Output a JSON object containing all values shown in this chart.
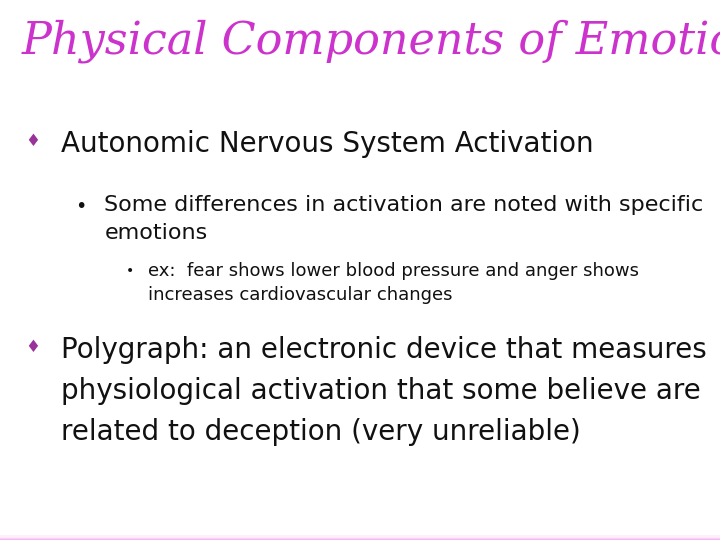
{
  "title": "Physical Components of Emotions",
  "title_color": "#cc33cc",
  "title_fontsize": 32,
  "title_style": "italic",
  "title_font": "serif",
  "bg_color_top": "#f5aaee",
  "bg_color_bottom": "#fdf0fc",
  "bullet1_text": "Autonomic Nervous System Activation",
  "bullet1_fontsize": 20,
  "sub_bullet1_text": "Some differences in activation are noted with specific\nemotions",
  "sub_bullet1_fontsize": 16,
  "sub_sub_bullet1_text": "ex:  fear shows lower blood pressure and anger shows\nincreases cardiovascular changes",
  "sub_sub_bullet1_fontsize": 13,
  "bullet2_text": "Polygraph: an electronic device that measures\nphysiological activation that some believe are\nrelated to deception (very unreliable)",
  "bullet2_fontsize": 20,
  "text_color": "#111111",
  "diamond_color": "#993399"
}
